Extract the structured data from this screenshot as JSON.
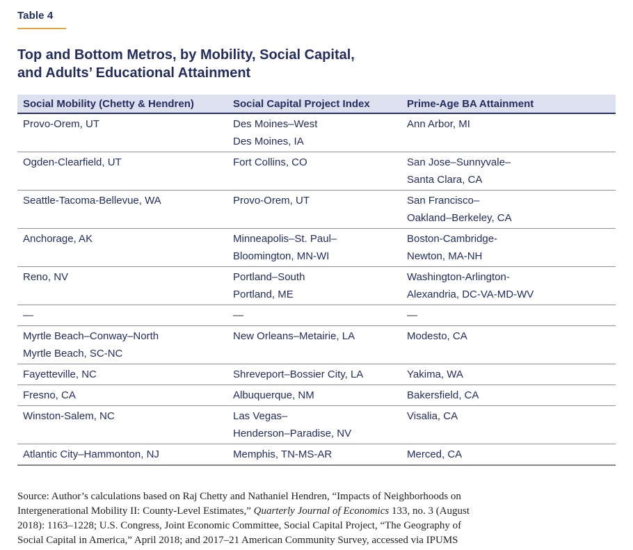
{
  "header": {
    "table_label": "Table 4",
    "title_line1": "Top and Bottom Metros, by Mobility, Social Capital,",
    "title_line2": "and Adults’ Educational Attainment"
  },
  "table": {
    "columns": [
      "Social Mobility (Chetty & Hendren)",
      "Social Capital Project Index",
      "Prime-Age BA Attainment"
    ],
    "rows": [
      {
        "cells": [
          [
            "Provo-Orem, UT"
          ],
          [
            "Des Moines–West",
            "Des Moines, IA"
          ],
          [
            "Ann Arbor, MI"
          ]
        ]
      },
      {
        "cells": [
          [
            "Ogden-Clearfield, UT"
          ],
          [
            "Fort Collins, CO"
          ],
          [
            "San Jose–Sunnyvale–",
            "Santa Clara, CA"
          ]
        ]
      },
      {
        "cells": [
          [
            "Seattle-Tacoma-Bellevue, WA"
          ],
          [
            "Provo-Orem, UT"
          ],
          [
            "San Francisco–",
            "Oakland–Berkeley, CA"
          ]
        ]
      },
      {
        "cells": [
          [
            "Anchorage, AK"
          ],
          [
            "Minneapolis–St. Paul–",
            "Bloomington, MN-WI"
          ],
          [
            "Boston-Cambridge-",
            "Newton, MA-NH"
          ]
        ]
      },
      {
        "cells": [
          [
            "Reno, NV"
          ],
          [
            "Portland–South",
            "Portland, ME"
          ],
          [
            "Washington-Arlington-",
            "Alexandria, DC-VA-MD-WV"
          ]
        ]
      },
      {
        "cells": [
          [
            "—"
          ],
          [
            "—"
          ],
          [
            "—"
          ]
        ]
      },
      {
        "cells": [
          [
            "Myrtle Beach–Conway–North",
            "Myrtle Beach, SC-NC"
          ],
          [
            "New Orleans–Metairie, LA"
          ],
          [
            "Modesto, CA"
          ]
        ]
      },
      {
        "cells": [
          [
            "Fayetteville, NC"
          ],
          [
            "Shreveport–Bossier City, LA"
          ],
          [
            "Yakima, WA"
          ]
        ]
      },
      {
        "cells": [
          [
            "Fresno, CA"
          ],
          [
            "Albuquerque, NM"
          ],
          [
            "Bakersfield, CA"
          ]
        ]
      },
      {
        "cells": [
          [
            "Winston-Salem, NC"
          ],
          [
            "Las Vegas–",
            "Henderson–Paradise, NV"
          ],
          [
            "Visalia, CA"
          ]
        ]
      },
      {
        "cells": [
          [
            "Atlantic City–Hammonton, NJ"
          ],
          [
            "Memphis, TN-MS-AR"
          ],
          [
            "Merced, CA"
          ]
        ]
      }
    ]
  },
  "source": {
    "before_italic": "Source: Author’s calculations based on Raj Chetty and Nathaniel Hendren, “Impacts of Neighborhoods on Intergenerational Mobility II: County-Level Estimates,” ",
    "italic": "Quarterly Journal of Economics",
    "after_italic": " 133, no. 3 (August 2018): 1163–1228; U.S. Congress, Joint Economic Committee, Social Capital Project, “The Geography of Social Capital in America,” April 2018; and 2017–21 American Community Survey, accessed via IPUMS"
  },
  "colors": {
    "navy_text": "#232d5e",
    "header_bg": "#dde1ef",
    "accent_gold": "#e5a33c",
    "row_divider_gray": "#8f8f99"
  }
}
